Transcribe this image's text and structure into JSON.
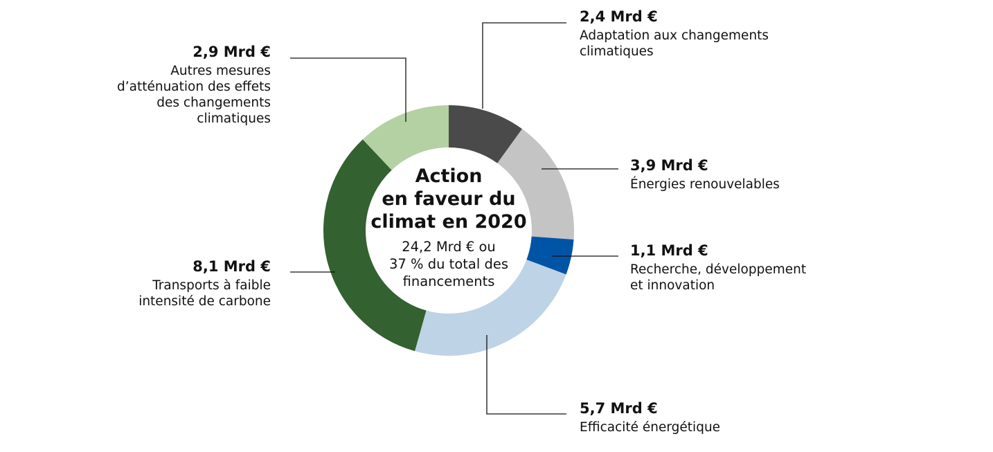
{
  "chart_data": {
    "type": "pie",
    "title_lines": [
      "Action",
      "en faveur du",
      "climat en 2020"
    ],
    "subtitle_lines": [
      "24,2 Mrd € ou",
      "37 % du total des",
      "financements"
    ],
    "unit": "Mrd €",
    "slices": [
      {
        "value": 2.4,
        "label": "2,4 Mrd €",
        "category_lines": [
          "Adaptation aux changements",
          "climatiques"
        ],
        "color": "#4a4a4a"
      },
      {
        "value": 3.9,
        "label": "3,9 Mrd €",
        "category_lines": [
          "Énergies renouvelables"
        ],
        "color": "#c4c4c4"
      },
      {
        "value": 1.1,
        "label": "1,1 Mrd €",
        "category_lines": [
          "Recherche, développement",
          "et innovation"
        ],
        "color": "#0054a6"
      },
      {
        "value": 5.7,
        "label": "5,7 Mrd €",
        "category_lines": [
          "Efficacité énergétique"
        ],
        "color": "#bfd3e6"
      },
      {
        "value": 8.1,
        "label": "8,1 Mrd €",
        "category_lines": [
          "Transports à faible",
          "intensité de carbone"
        ],
        "color": "#336130"
      },
      {
        "value": 2.9,
        "label": "2,9 Mrd €",
        "category_lines": [
          "Autres mesures",
          "d’atténuation des effets",
          "des changements",
          "climatiques"
        ],
        "color": "#b3d1a2"
      }
    ]
  }
}
